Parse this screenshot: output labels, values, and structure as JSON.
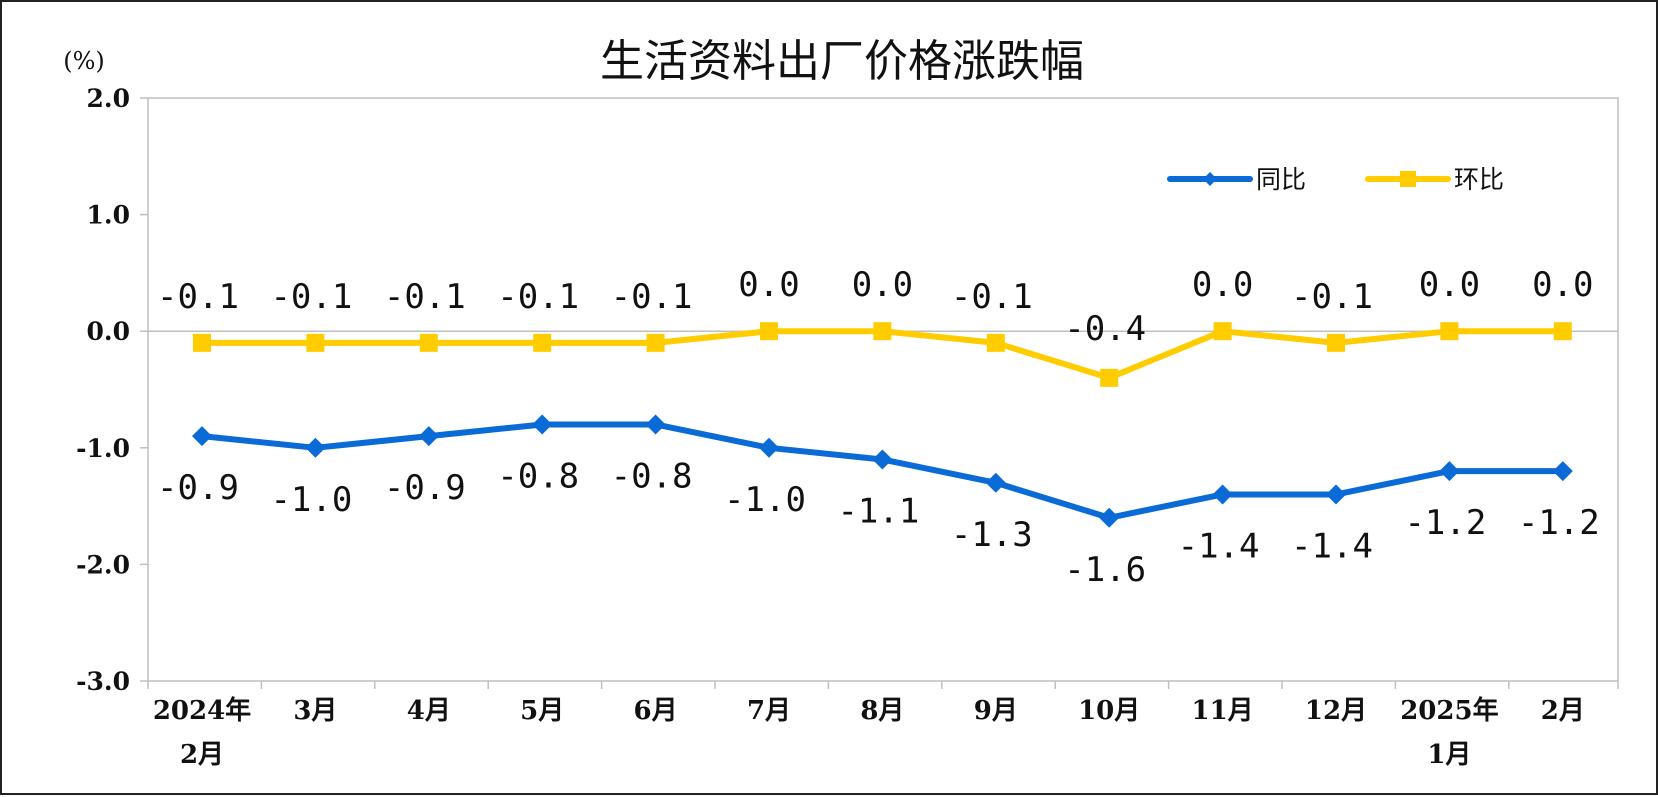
{
  "chart_data": {
    "type": "line",
    "title": "生活资料出厂价格涨跌幅",
    "unit": "(%)",
    "ylim": [
      -3.0,
      2.0
    ],
    "yticks": [
      "2.0",
      "1.0",
      "0.0",
      "-1.0",
      "-2.0",
      "-3.0"
    ],
    "ytick_values": [
      2.0,
      1.0,
      0.0,
      -1.0,
      -2.0,
      -3.0
    ],
    "categories": [
      [
        "2024年",
        "2月"
      ],
      [
        "3月"
      ],
      [
        "4月"
      ],
      [
        "5月"
      ],
      [
        "6月"
      ],
      [
        "7月"
      ],
      [
        "8月"
      ],
      [
        "9月"
      ],
      [
        "10月"
      ],
      [
        "11月"
      ],
      [
        "12月"
      ],
      [
        "2025年",
        "1月"
      ],
      [
        "2月"
      ]
    ],
    "grid": false,
    "zero_line": true,
    "legend_position": "top-right",
    "series": [
      {
        "name": "同比",
        "color": "#0a6bd6",
        "marker": "diamond",
        "values": [
          -0.9,
          -1.0,
          -0.9,
          -0.8,
          -0.8,
          -1.0,
          -1.1,
          -1.3,
          -1.6,
          -1.4,
          -1.4,
          -1.2,
          -1.2
        ],
        "labels": [
          "-0.9",
          "-1.0",
          "-0.9",
          "-0.8",
          "-0.8",
          "-1.0",
          "-1.1",
          "-1.3",
          "-1.6",
          "-1.4",
          "-1.4",
          "-1.2",
          "-1.2"
        ],
        "label_position": "below"
      },
      {
        "name": "环比",
        "color": "#ffcc00",
        "marker": "square",
        "values": [
          -0.1,
          -0.1,
          -0.1,
          -0.1,
          -0.1,
          0.0,
          0.0,
          -0.1,
          -0.4,
          0.0,
          -0.1,
          0.0,
          0.0
        ],
        "labels": [
          "-0.1",
          "-0.1",
          "-0.1",
          "-0.1",
          "-0.1",
          "0.0",
          "0.0",
          "-0.1",
          "-0.4",
          "0.0",
          "-0.1",
          "0.0",
          "0.0"
        ],
        "label_position": "above"
      }
    ]
  }
}
